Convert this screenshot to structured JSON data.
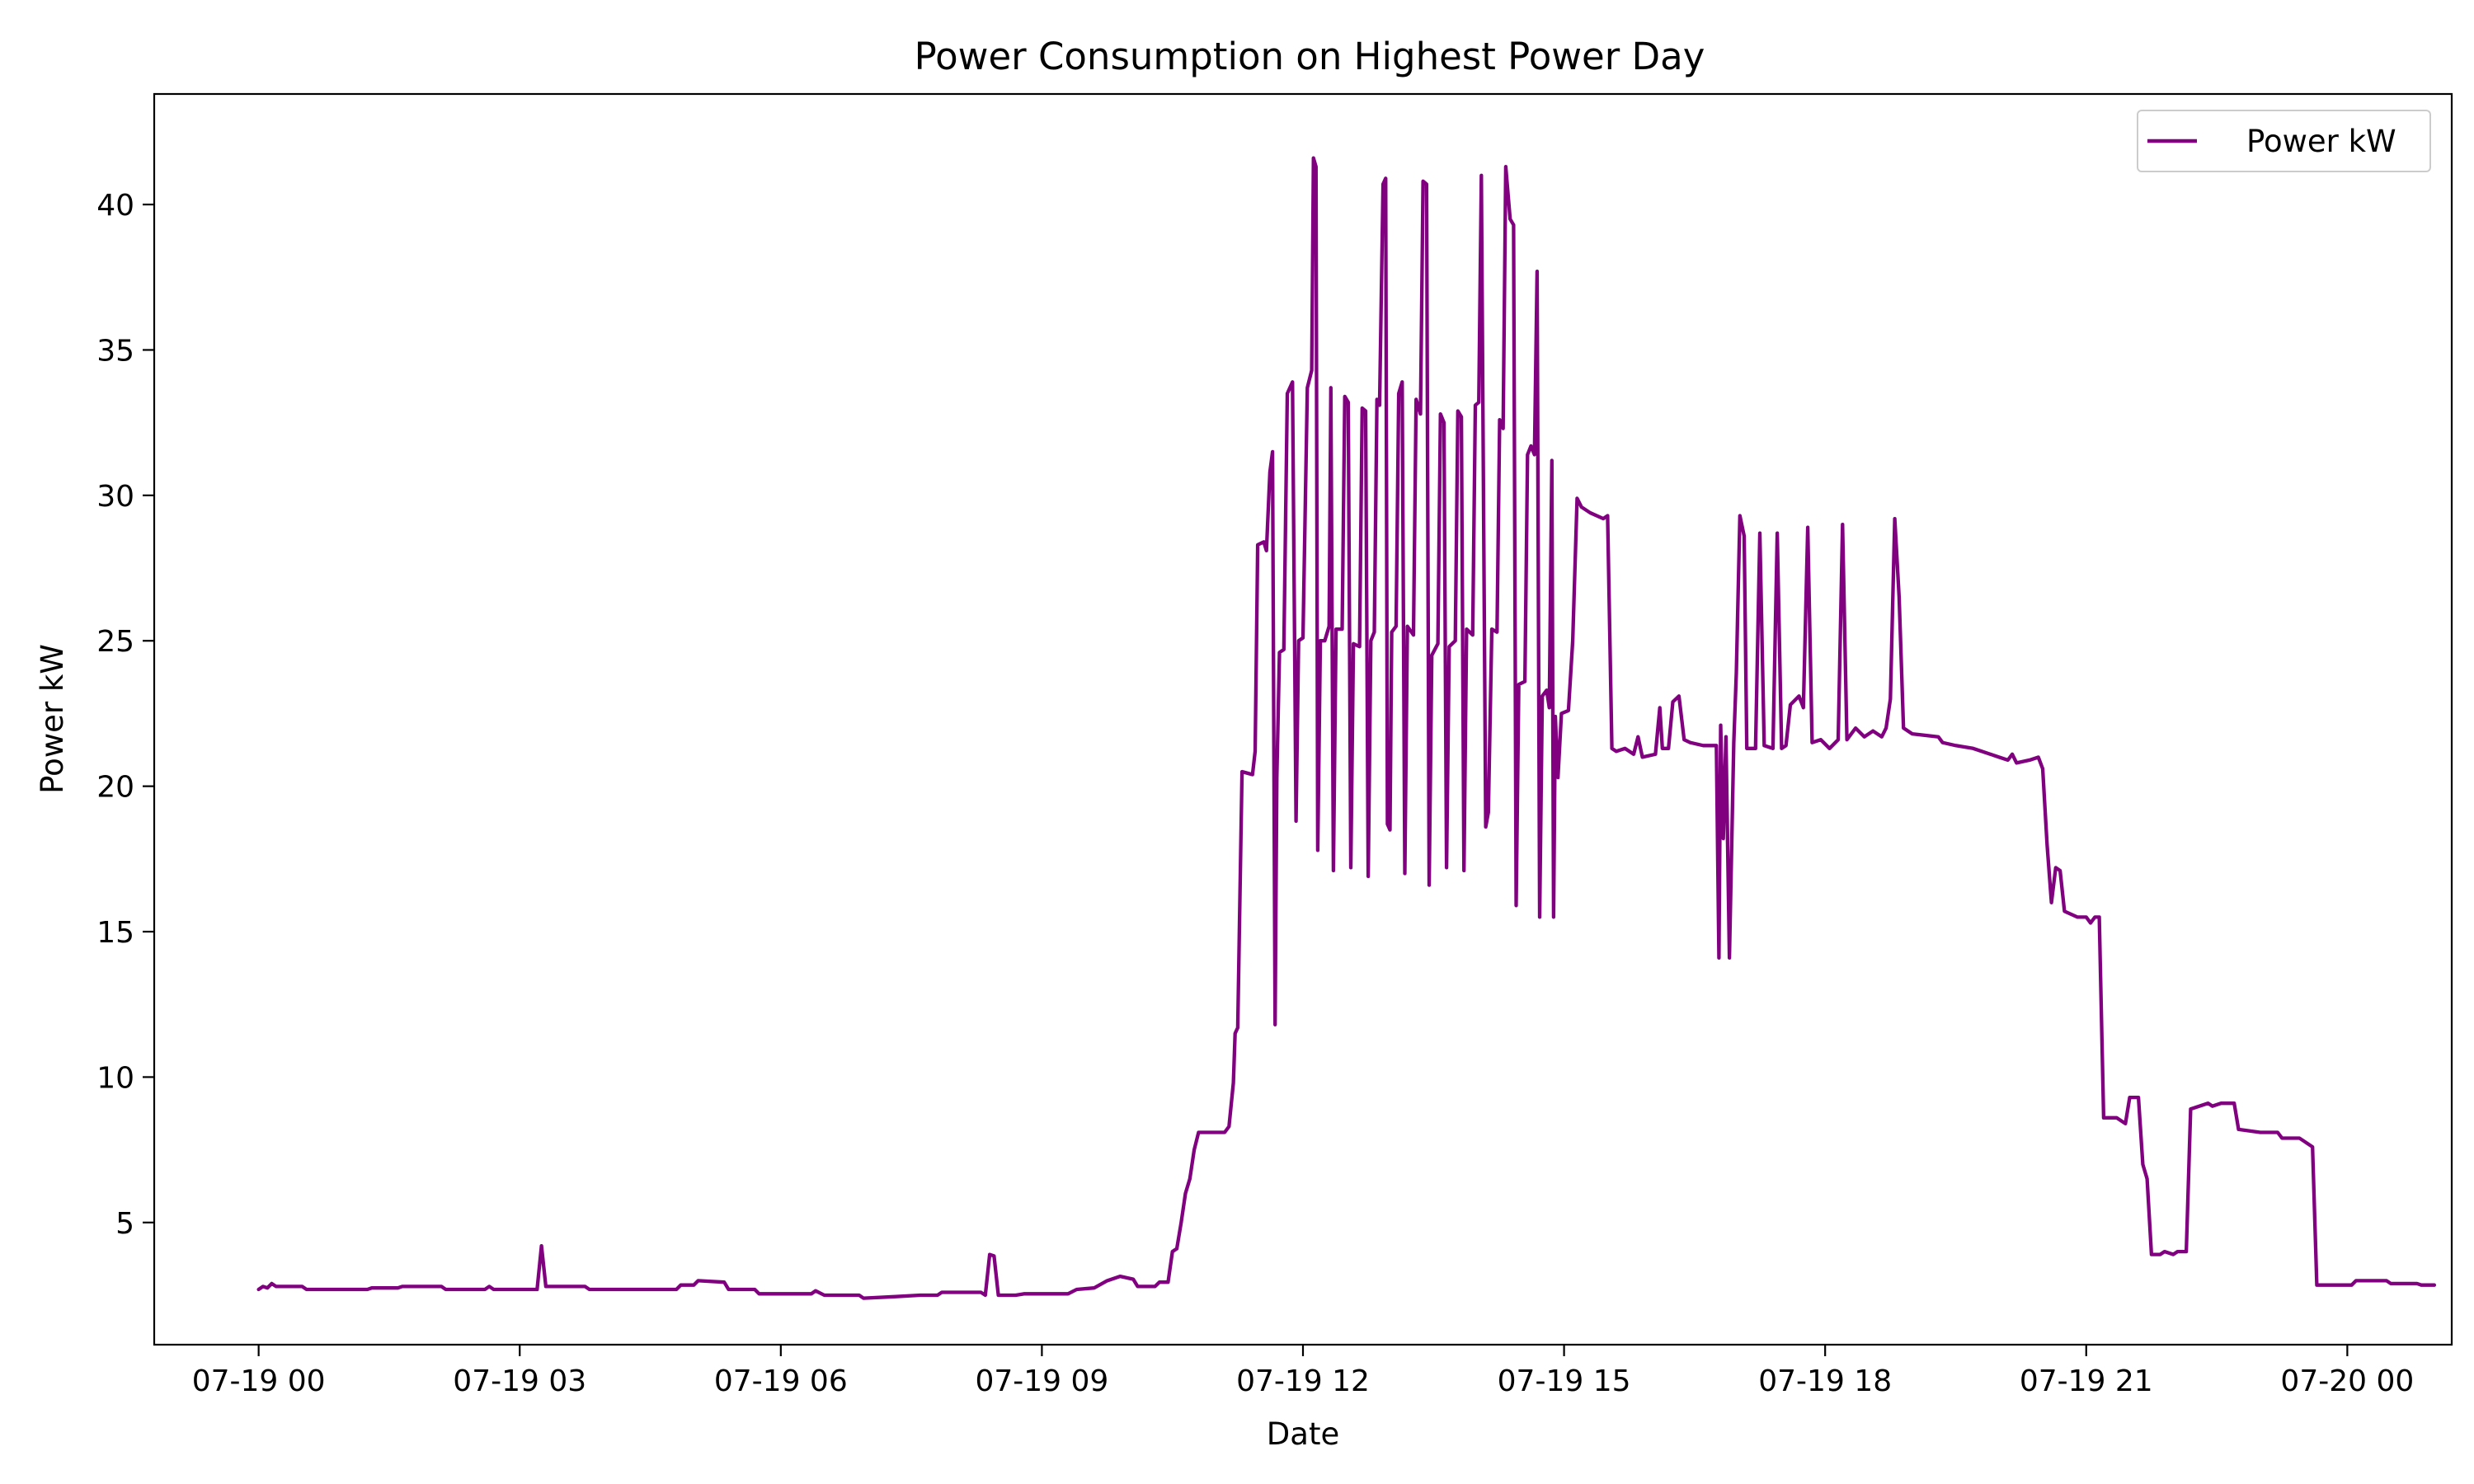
{
  "chart_data": {
    "type": "line",
    "title": "Power Consumption on Highest Power Day",
    "xlabel": "Date",
    "ylabel": "Power kW",
    "x_ticks": [
      {
        "hours": 0,
        "label": "07-19 00"
      },
      {
        "hours": 3,
        "label": "07-19 03"
      },
      {
        "hours": 6,
        "label": "07-19 06"
      },
      {
        "hours": 9,
        "label": "07-19 09"
      },
      {
        "hours": 12,
        "label": "07-19 12"
      },
      {
        "hours": 15,
        "label": "07-19 15"
      },
      {
        "hours": 18,
        "label": "07-19 18"
      },
      {
        "hours": 21,
        "label": "07-19 21"
      },
      {
        "hours": 24,
        "label": "07-20 00"
      }
    ],
    "y_ticks": [
      5,
      10,
      15,
      20,
      25,
      30,
      35,
      40
    ],
    "xlim": [
      -1.2,
      25.2
    ],
    "ylim": [
      0.8,
      43.8
    ],
    "grid": false,
    "legend_position": "top-right",
    "series": [
      {
        "name": "Power kW",
        "color": "#800080",
        "points": [
          [
            0.0,
            2.7
          ],
          [
            0.05,
            2.8
          ],
          [
            0.1,
            2.75
          ],
          [
            0.15,
            2.9
          ],
          [
            0.2,
            2.8
          ],
          [
            0.5,
            2.8
          ],
          [
            0.55,
            2.7
          ],
          [
            1.25,
            2.7
          ],
          [
            1.3,
            2.75
          ],
          [
            1.6,
            2.75
          ],
          [
            1.65,
            2.8
          ],
          [
            2.1,
            2.8
          ],
          [
            2.15,
            2.7
          ],
          [
            2.6,
            2.7
          ],
          [
            2.65,
            2.8
          ],
          [
            2.7,
            2.7
          ],
          [
            3.2,
            2.7
          ],
          [
            3.25,
            4.2
          ],
          [
            3.3,
            2.8
          ],
          [
            3.75,
            2.8
          ],
          [
            3.8,
            2.7
          ],
          [
            4.8,
            2.7
          ],
          [
            4.85,
            2.85
          ],
          [
            5.0,
            2.85
          ],
          [
            5.05,
            3.0
          ],
          [
            5.35,
            2.95
          ],
          [
            5.4,
            2.7
          ],
          [
            5.7,
            2.7
          ],
          [
            5.75,
            2.55
          ],
          [
            6.35,
            2.55
          ],
          [
            6.4,
            2.65
          ],
          [
            6.5,
            2.5
          ],
          [
            6.9,
            2.5
          ],
          [
            6.95,
            2.4
          ],
          [
            7.3,
            2.45
          ],
          [
            7.6,
            2.5
          ],
          [
            7.8,
            2.5
          ],
          [
            7.85,
            2.6
          ],
          [
            8.3,
            2.6
          ],
          [
            8.35,
            2.5
          ],
          [
            8.4,
            3.9
          ],
          [
            8.45,
            3.85
          ],
          [
            8.5,
            2.5
          ],
          [
            8.7,
            2.5
          ],
          [
            8.8,
            2.55
          ],
          [
            9.3,
            2.55
          ],
          [
            9.4,
            2.7
          ],
          [
            9.6,
            2.75
          ],
          [
            9.75,
            3.0
          ],
          [
            9.9,
            3.15
          ],
          [
            10.05,
            3.05
          ],
          [
            10.1,
            2.8
          ],
          [
            10.3,
            2.8
          ],
          [
            10.35,
            2.95
          ],
          [
            10.45,
            2.95
          ],
          [
            10.5,
            4.0
          ],
          [
            10.55,
            4.1
          ],
          [
            10.6,
            5.0
          ],
          [
            10.65,
            6.0
          ],
          [
            10.7,
            6.5
          ],
          [
            10.75,
            7.5
          ],
          [
            10.8,
            8.1
          ],
          [
            11.1,
            8.1
          ],
          [
            11.15,
            8.3
          ],
          [
            11.2,
            9.8
          ],
          [
            11.22,
            11.5
          ],
          [
            11.25,
            11.7
          ],
          [
            11.3,
            20.5
          ],
          [
            11.42,
            20.4
          ],
          [
            11.45,
            21.2
          ],
          [
            11.48,
            28.3
          ],
          [
            11.55,
            28.4
          ],
          [
            11.58,
            28.1
          ],
          [
            11.62,
            30.8
          ],
          [
            11.65,
            31.5
          ],
          [
            11.68,
            11.8
          ],
          [
            11.7,
            20.3
          ],
          [
            11.73,
            24.6
          ],
          [
            11.78,
            24.7
          ],
          [
            11.82,
            33.5
          ],
          [
            11.88,
            33.9
          ],
          [
            11.92,
            18.8
          ],
          [
            11.95,
            25.0
          ],
          [
            12.0,
            25.1
          ],
          [
            12.05,
            33.7
          ],
          [
            12.1,
            34.3
          ],
          [
            12.12,
            41.6
          ],
          [
            12.15,
            41.3
          ],
          [
            12.17,
            17.8
          ],
          [
            12.2,
            25.0
          ],
          [
            12.25,
            25.0
          ],
          [
            12.3,
            25.5
          ],
          [
            12.32,
            33.7
          ],
          [
            12.35,
            17.1
          ],
          [
            12.38,
            25.4
          ],
          [
            12.45,
            25.4
          ],
          [
            12.48,
            33.4
          ],
          [
            12.52,
            33.2
          ],
          [
            12.55,
            17.2
          ],
          [
            12.58,
            24.9
          ],
          [
            12.65,
            24.8
          ],
          [
            12.68,
            33.0
          ],
          [
            12.72,
            32.9
          ],
          [
            12.75,
            16.9
          ],
          [
            12.78,
            25.0
          ],
          [
            12.82,
            25.3
          ],
          [
            12.85,
            33.3
          ],
          [
            12.88,
            33.1
          ],
          [
            12.92,
            40.7
          ],
          [
            12.95,
            40.9
          ],
          [
            12.97,
            18.7
          ],
          [
            13.0,
            18.5
          ],
          [
            13.02,
            25.3
          ],
          [
            13.07,
            25.5
          ],
          [
            13.1,
            33.5
          ],
          [
            13.14,
            33.9
          ],
          [
            13.17,
            17.0
          ],
          [
            13.2,
            25.5
          ],
          [
            13.27,
            25.2
          ],
          [
            13.3,
            33.3
          ],
          [
            13.35,
            32.8
          ],
          [
            13.38,
            40.8
          ],
          [
            13.42,
            40.7
          ],
          [
            13.45,
            16.6
          ],
          [
            13.48,
            24.5
          ],
          [
            13.55,
            24.9
          ],
          [
            13.58,
            32.8
          ],
          [
            13.62,
            32.5
          ],
          [
            13.65,
            17.2
          ],
          [
            13.68,
            24.8
          ],
          [
            13.75,
            25.0
          ],
          [
            13.78,
            32.9
          ],
          [
            13.82,
            32.7
          ],
          [
            13.85,
            17.1
          ],
          [
            13.88,
            25.4
          ],
          [
            13.95,
            25.2
          ],
          [
            13.98,
            33.1
          ],
          [
            14.02,
            33.2
          ],
          [
            14.05,
            41.0
          ],
          [
            14.1,
            18.6
          ],
          [
            14.13,
            19.1
          ],
          [
            14.17,
            25.4
          ],
          [
            14.23,
            25.3
          ],
          [
            14.26,
            32.6
          ],
          [
            14.3,
            32.3
          ],
          [
            14.33,
            41.3
          ],
          [
            14.38,
            39.5
          ],
          [
            14.42,
            39.3
          ],
          [
            14.45,
            15.9
          ],
          [
            14.48,
            23.5
          ],
          [
            14.55,
            23.6
          ],
          [
            14.58,
            31.4
          ],
          [
            14.62,
            31.7
          ],
          [
            14.66,
            31.4
          ],
          [
            14.69,
            37.7
          ],
          [
            14.72,
            15.5
          ],
          [
            14.75,
            23.1
          ],
          [
            14.8,
            23.3
          ],
          [
            14.83,
            22.7
          ],
          [
            14.86,
            31.2
          ],
          [
            14.88,
            15.5
          ],
          [
            14.9,
            22.4
          ],
          [
            14.93,
            20.3
          ],
          [
            14.97,
            22.5
          ],
          [
            15.05,
            22.6
          ],
          [
            15.1,
            25.0
          ],
          [
            15.15,
            29.9
          ],
          [
            15.2,
            29.6
          ],
          [
            15.25,
            29.5
          ],
          [
            15.3,
            29.4
          ],
          [
            15.45,
            29.2
          ],
          [
            15.5,
            29.3
          ],
          [
            15.55,
            21.3
          ],
          [
            15.6,
            21.2
          ],
          [
            15.7,
            21.3
          ],
          [
            15.8,
            21.1
          ],
          [
            15.85,
            21.7
          ],
          [
            15.9,
            21.0
          ],
          [
            16.05,
            21.1
          ],
          [
            16.1,
            22.7
          ],
          [
            16.13,
            21.3
          ],
          [
            16.2,
            21.3
          ],
          [
            16.25,
            22.9
          ],
          [
            16.32,
            23.1
          ],
          [
            16.38,
            21.6
          ],
          [
            16.45,
            21.5
          ],
          [
            16.6,
            21.4
          ],
          [
            16.75,
            21.4
          ],
          [
            16.78,
            14.1
          ],
          [
            16.8,
            22.1
          ],
          [
            16.83,
            18.2
          ],
          [
            16.86,
            21.7
          ],
          [
            16.9,
            14.1
          ],
          [
            16.95,
            21.5
          ],
          [
            16.98,
            23.9
          ],
          [
            17.02,
            29.3
          ],
          [
            17.07,
            28.6
          ],
          [
            17.1,
            21.3
          ],
          [
            17.2,
            21.3
          ],
          [
            17.25,
            28.7
          ],
          [
            17.3,
            21.4
          ],
          [
            17.4,
            21.3
          ],
          [
            17.45,
            28.7
          ],
          [
            17.5,
            21.3
          ],
          [
            17.55,
            21.4
          ],
          [
            17.6,
            22.8
          ],
          [
            17.7,
            23.1
          ],
          [
            17.75,
            22.7
          ],
          [
            17.8,
            28.9
          ],
          [
            17.85,
            21.5
          ],
          [
            17.95,
            21.6
          ],
          [
            18.05,
            21.3
          ],
          [
            18.15,
            21.6
          ],
          [
            18.2,
            29.0
          ],
          [
            18.25,
            21.6
          ],
          [
            18.35,
            22.0
          ],
          [
            18.45,
            21.7
          ],
          [
            18.55,
            21.9
          ],
          [
            18.65,
            21.7
          ],
          [
            18.7,
            22.0
          ],
          [
            18.75,
            23.0
          ],
          [
            18.8,
            29.2
          ],
          [
            18.85,
            26.5
          ],
          [
            18.9,
            22.0
          ],
          [
            19.0,
            21.8
          ],
          [
            19.3,
            21.7
          ],
          [
            19.35,
            21.5
          ],
          [
            19.5,
            21.4
          ],
          [
            19.7,
            21.3
          ],
          [
            19.8,
            21.2
          ],
          [
            20.0,
            21.0
          ],
          [
            20.1,
            20.9
          ],
          [
            20.15,
            21.1
          ],
          [
            20.2,
            20.8
          ],
          [
            20.35,
            20.9
          ],
          [
            20.45,
            21.0
          ],
          [
            20.5,
            20.6
          ],
          [
            20.55,
            18.0
          ],
          [
            20.6,
            16.0
          ],
          [
            20.65,
            17.2
          ],
          [
            20.7,
            17.1
          ],
          [
            20.75,
            15.7
          ],
          [
            20.9,
            15.5
          ],
          [
            21.0,
            15.5
          ],
          [
            21.05,
            15.3
          ],
          [
            21.1,
            15.5
          ],
          [
            21.15,
            15.5
          ],
          [
            21.2,
            8.6
          ],
          [
            21.35,
            8.6
          ],
          [
            21.45,
            8.4
          ],
          [
            21.5,
            9.3
          ],
          [
            21.6,
            9.3
          ],
          [
            21.65,
            7.0
          ],
          [
            21.7,
            6.5
          ],
          [
            21.75,
            3.9
          ],
          [
            21.85,
            3.9
          ],
          [
            21.9,
            4.0
          ],
          [
            22.0,
            3.9
          ],
          [
            22.05,
            4.0
          ],
          [
            22.15,
            4.0
          ],
          [
            22.2,
            8.9
          ],
          [
            22.3,
            9.0
          ],
          [
            22.4,
            9.1
          ],
          [
            22.45,
            9.0
          ],
          [
            22.55,
            9.1
          ],
          [
            22.7,
            9.1
          ],
          [
            22.75,
            8.2
          ],
          [
            23.0,
            8.1
          ],
          [
            23.2,
            8.1
          ],
          [
            23.25,
            7.9
          ],
          [
            23.45,
            7.9
          ],
          [
            23.5,
            7.8
          ],
          [
            23.6,
            7.6
          ],
          [
            23.65,
            2.85
          ],
          [
            24.05,
            2.85
          ],
          [
            24.1,
            3.0
          ],
          [
            24.45,
            3.0
          ],
          [
            24.5,
            2.9
          ],
          [
            24.8,
            2.9
          ],
          [
            24.85,
            2.85
          ],
          [
            25.0,
            2.85
          ]
        ]
      }
    ]
  }
}
